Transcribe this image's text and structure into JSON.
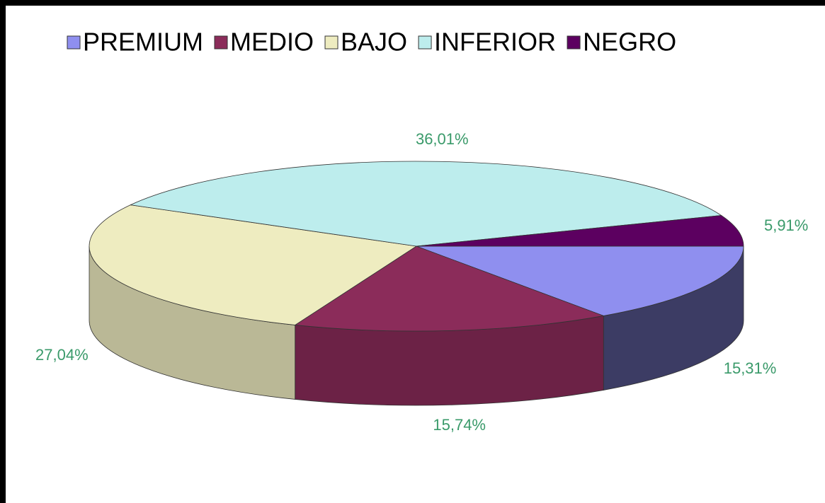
{
  "chart_data": {
    "type": "pie",
    "categories": [
      "PREMIUM",
      "MEDIO",
      "BAJO",
      "INFERIOR",
      "NEGRO"
    ],
    "values": [
      15.31,
      15.74,
      27.04,
      36.01,
      5.91
    ],
    "value_labels": [
      "15,31%",
      "15,74%",
      "27,04%",
      "36,01%",
      "5,91%"
    ],
    "colors": [
      "#8f8fef",
      "#8b2c5a",
      "#eeecc0",
      "#bdeded",
      "#5c0060"
    ],
    "legend": "top"
  }
}
